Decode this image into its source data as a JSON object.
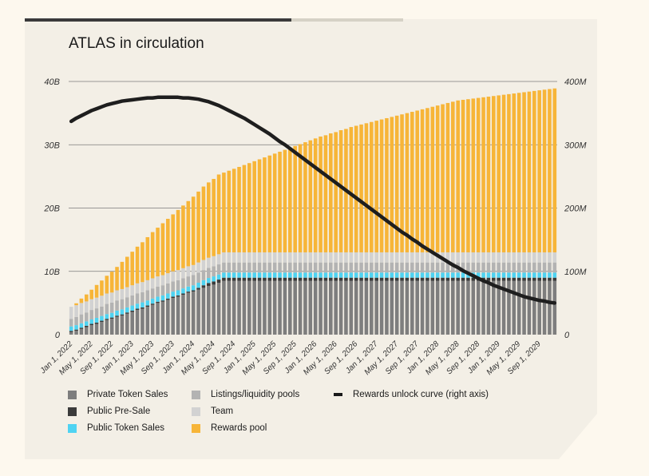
{
  "chart_data": {
    "type": "bar",
    "stacked": true,
    "title": "ATLAS in circulation",
    "xlabel": "",
    "ylabel": "",
    "ylim": [
      0,
      40
    ],
    "ylim_right": [
      0,
      400
    ],
    "left_ticks": [
      "0",
      "10B",
      "20B",
      "30B",
      "40B"
    ],
    "right_ticks": [
      "0",
      "100M",
      "200M",
      "300M",
      "400M"
    ],
    "grid": true,
    "legend_position": "bottom",
    "colors": {
      "private": "#7e7e7e",
      "presale": "#3b3b3b",
      "public": "#4fd3f2",
      "listings": "#b3b3b3",
      "team": "#d2d2d2",
      "rewards": "#f7b538",
      "curve": "#1e1e1e",
      "grid": "#7a7a7a",
      "background": "#f3efe6"
    },
    "x_ticks": [
      "Jan 1, 2022",
      "May 1, 2022",
      "Sep 1, 2022",
      "Jan 1, 2023",
      "May 1, 2023",
      "Sep 1, 2023",
      "Jan 1, 2024",
      "May 1, 2024",
      "Sep 1, 2024",
      "Jan 1, 2025",
      "May 1, 2025",
      "Sep 1, 2025",
      "Jan 1, 2026",
      "May 1, 2026",
      "Sep 1, 2026",
      "Jan 1, 2027",
      "May 1, 2027",
      "Sep 1, 2027",
      "Jan 1, 2028",
      "May 1, 2028",
      "Sep 1, 2028",
      "Jan 1, 2029",
      "May 1, 2029",
      "Sep 1, 2029"
    ],
    "x_start_month": "Jan 2022",
    "x_end_month": "Dec 2029",
    "series": [
      {
        "name": "Private Token Sales",
        "key": "private",
        "values": [
          0.4,
          0.6,
          0.9,
          1.2,
          1.5,
          1.7,
          2,
          2.3,
          2.5,
          2.8,
          3,
          3.3,
          3.6,
          3.9,
          4.1,
          4.4,
          4.7,
          5,
          5.2,
          5.5,
          5.8,
          6,
          6.3,
          6.6,
          6.8,
          7.1,
          7.4,
          7.7,
          7.9,
          8.2,
          8.5,
          8.5,
          8.5,
          8.5,
          8.5,
          8.5,
          8.5,
          8.5,
          8.5,
          8.5,
          8.5,
          8.5,
          8.5,
          8.5,
          8.5,
          8.5,
          8.5,
          8.5,
          8.5,
          8.5,
          8.5,
          8.5,
          8.5,
          8.5,
          8.5,
          8.5,
          8.5,
          8.5,
          8.5,
          8.5,
          8.5,
          8.5,
          8.5,
          8.5,
          8.5,
          8.5,
          8.5,
          8.5,
          8.5,
          8.5,
          8.5,
          8.5,
          8.5,
          8.5,
          8.5,
          8.5,
          8.5,
          8.5,
          8.5,
          8.5,
          8.5,
          8.5,
          8.5,
          8.5,
          8.5,
          8.5,
          8.5,
          8.5,
          8.5,
          8.5,
          8.5,
          8.5,
          8.5,
          8.5,
          8.5,
          8.5
        ]
      },
      {
        "name": "Public Pre-Sale",
        "key": "presale",
        "values": [
          0.2,
          0.2,
          0.2,
          0.2,
          0.2,
          0.2,
          0.2,
          0.2,
          0.2,
          0.2,
          0.2,
          0.2,
          0.2,
          0.2,
          0.2,
          0.2,
          0.2,
          0.2,
          0.2,
          0.2,
          0.2,
          0.2,
          0.2,
          0.2,
          0.2,
          0.3,
          0.4,
          0.45,
          0.5,
          0.5,
          0.5,
          0.5,
          0.5,
          0.5,
          0.5,
          0.5,
          0.5,
          0.5,
          0.5,
          0.5,
          0.5,
          0.5,
          0.5,
          0.5,
          0.5,
          0.5,
          0.5,
          0.5,
          0.5,
          0.5,
          0.5,
          0.5,
          0.5,
          0.5,
          0.5,
          0.5,
          0.5,
          0.5,
          0.5,
          0.5,
          0.5,
          0.5,
          0.5,
          0.5,
          0.5,
          0.5,
          0.5,
          0.5,
          0.5,
          0.5,
          0.5,
          0.5,
          0.5,
          0.5,
          0.5,
          0.5,
          0.5,
          0.5,
          0.5,
          0.5,
          0.5,
          0.5,
          0.5,
          0.5,
          0.5,
          0.5,
          0.5,
          0.5,
          0.5,
          0.5,
          0.5,
          0.5,
          0.5,
          0.5,
          0.5,
          0.5
        ]
      },
      {
        "name": "Public Token Sales",
        "key": "public",
        "values": [
          0.7,
          0.7,
          0.7,
          0.7,
          0.7,
          0.75,
          0.75,
          0.75,
          0.75,
          0.8,
          0.8,
          0.8,
          0.8,
          0.8,
          0.8,
          0.8,
          0.8,
          0.8,
          0.8,
          0.8,
          0.8,
          0.8,
          0.8,
          0.8,
          0.8,
          0.8,
          0.8,
          0.8,
          0.8,
          0.8,
          0.8,
          0.8,
          0.8,
          0.8,
          0.8,
          0.8,
          0.8,
          0.8,
          0.8,
          0.8,
          0.8,
          0.8,
          0.8,
          0.8,
          0.8,
          0.8,
          0.8,
          0.8,
          0.8,
          0.8,
          0.8,
          0.8,
          0.8,
          0.8,
          0.8,
          0.8,
          0.8,
          0.8,
          0.8,
          0.8,
          0.8,
          0.8,
          0.8,
          0.8,
          0.8,
          0.8,
          0.8,
          0.8,
          0.8,
          0.8,
          0.8,
          0.8,
          0.8,
          0.8,
          0.8,
          0.8,
          0.8,
          0.8,
          0.8,
          0.8,
          0.8,
          0.8,
          0.8,
          0.8,
          0.8,
          0.8,
          0.8,
          0.8,
          0.8,
          0.8,
          0.8,
          0.8,
          0.8,
          0.8,
          0.8,
          0.8
        ]
      },
      {
        "name": "Listings/liquidity pools",
        "key": "listings",
        "values": [
          1.2,
          1.3,
          1.4,
          1.4,
          1.5,
          1.5,
          1.5,
          1.6,
          1.6,
          1.6,
          1.6,
          1.6,
          1.6,
          1.6,
          1.6,
          1.6,
          1.6,
          1.6,
          1.6,
          1.6,
          1.6,
          1.6,
          1.6,
          1.6,
          1.6,
          1.6,
          1.6,
          1.6,
          1.6,
          1.6,
          1.6,
          1.6,
          1.6,
          1.6,
          1.6,
          1.6,
          1.6,
          1.6,
          1.6,
          1.6,
          1.6,
          1.6,
          1.6,
          1.6,
          1.6,
          1.6,
          1.6,
          1.6,
          1.6,
          1.6,
          1.6,
          1.6,
          1.6,
          1.6,
          1.6,
          1.6,
          1.6,
          1.6,
          1.6,
          1.6,
          1.6,
          1.6,
          1.6,
          1.6,
          1.6,
          1.6,
          1.6,
          1.6,
          1.6,
          1.6,
          1.6,
          1.6,
          1.6,
          1.6,
          1.6,
          1.6,
          1.6,
          1.6,
          1.6,
          1.6,
          1.6,
          1.6,
          1.6,
          1.6,
          1.6,
          1.6,
          1.6,
          1.6,
          1.6,
          1.6,
          1.6,
          1.6,
          1.6,
          1.6,
          1.6,
          1.6
        ]
      },
      {
        "name": "Team",
        "key": "team",
        "values": [
          1.9,
          1.85,
          1.8,
          1.75,
          1.7,
          1.7,
          1.7,
          1.65,
          1.6,
          1.6,
          1.6,
          1.6,
          1.6,
          1.6,
          1.6,
          1.6,
          1.6,
          1.6,
          1.6,
          1.6,
          1.6,
          1.6,
          1.6,
          1.6,
          1.6,
          1.6,
          1.6,
          1.6,
          1.6,
          1.6,
          1.6,
          1.6,
          1.6,
          1.6,
          1.6,
          1.6,
          1.6,
          1.6,
          1.6,
          1.6,
          1.6,
          1.6,
          1.6,
          1.6,
          1.6,
          1.6,
          1.6,
          1.6,
          1.6,
          1.6,
          1.6,
          1.6,
          1.6,
          1.6,
          1.6,
          1.6,
          1.6,
          1.6,
          1.6,
          1.6,
          1.6,
          1.6,
          1.6,
          1.6,
          1.6,
          1.6,
          1.6,
          1.6,
          1.6,
          1.6,
          1.6,
          1.6,
          1.6,
          1.6,
          1.6,
          1.6,
          1.6,
          1.6,
          1.6,
          1.6,
          1.6,
          1.6,
          1.6,
          1.6,
          1.6,
          1.6,
          1.6,
          1.6,
          1.6,
          1.6,
          1.6,
          1.6,
          1.6,
          1.6,
          1.6,
          1.6
        ]
      },
      {
        "name": "Rewards pool",
        "key": "rewards",
        "values": [
          0,
          0.3,
          0.7,
          1.1,
          1.5,
          2,
          2.4,
          2.8,
          3.3,
          3.7,
          4.3,
          4.8,
          5.3,
          5.8,
          6.3,
          6.8,
          7.3,
          7.7,
          8.2,
          8.6,
          9,
          9.5,
          9.9,
          10.3,
          10.8,
          11.2,
          11.6,
          11.9,
          12.2,
          12.6,
          12.6,
          12.9,
          13.2,
          13.5,
          13.8,
          14.1,
          14.4,
          14.7,
          15,
          15.3,
          15.6,
          15.9,
          16.2,
          16.5,
          16.8,
          17.1,
          17.4,
          17.7,
          18,
          18.3,
          18.5,
          18.8,
          19,
          19.3,
          19.5,
          19.8,
          20,
          20.2,
          20.4,
          20.6,
          20.8,
          21,
          21.2,
          21.4,
          21.6,
          21.8,
          22,
          22.2,
          22.4,
          22.6,
          22.8,
          23,
          23.2,
          23.4,
          23.6,
          23.8,
          24,
          24.1,
          24.2,
          24.3,
          24.4,
          24.5,
          24.6,
          24.7,
          24.8,
          24.9,
          25,
          25.1,
          25.2,
          25.3,
          25.4,
          25.5,
          25.6,
          25.7,
          25.8,
          25.9
        ]
      },
      {
        "name": "Rewards unlock curve (right axis)",
        "key": "curve",
        "type": "line",
        "axis": "right",
        "values": [
          337,
          342,
          346,
          350,
          354,
          357,
          360,
          363,
          365,
          367,
          369,
          370,
          371,
          372,
          373,
          374,
          374,
          375,
          375,
          375,
          375,
          375,
          374,
          374,
          373,
          372,
          370,
          368,
          365,
          362,
          358,
          354,
          350,
          346,
          342,
          337,
          332,
          327,
          322,
          317,
          311,
          305,
          300,
          294,
          288,
          282,
          276,
          270,
          264,
          258,
          252,
          246,
          240,
          234,
          228,
          222,
          216,
          210,
          204,
          198,
          192,
          186,
          180,
          174,
          168,
          162,
          157,
          151,
          146,
          140,
          135,
          130,
          125,
          120,
          115,
          110,
          106,
          101,
          97,
          93,
          89,
          85,
          82,
          78,
          75,
          72,
          69,
          66,
          63,
          60,
          58,
          56,
          54,
          53,
          51,
          50
        ]
      }
    ]
  }
}
